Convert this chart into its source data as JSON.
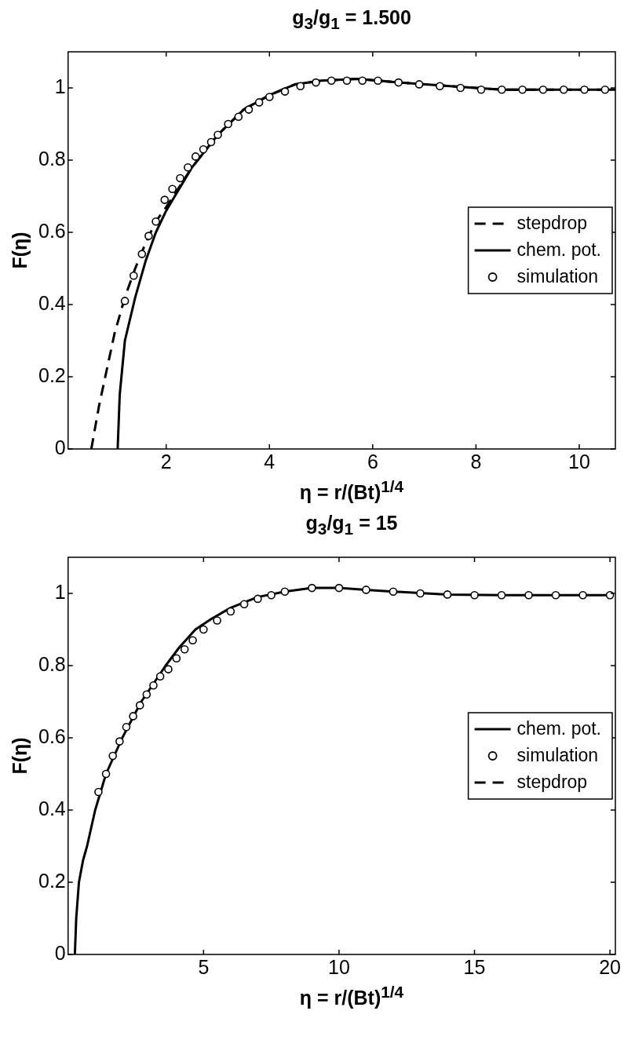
{
  "chart_data": [
    {
      "type": "line",
      "title": "g$_{3}$/g$_{1}$ = 1.500",
      "xlabel": "η = r/(Bt)$^{1/4}$",
      "ylabel": "F(η)",
      "xlim": [
        0.1,
        10.7
      ],
      "ylim": [
        0,
        1.1
      ],
      "xticks": [
        2,
        4,
        6,
        8,
        10
      ],
      "yticks": [
        0,
        0.2,
        0.4,
        0.6,
        0.8,
        1
      ],
      "grid": false,
      "legend": "right",
      "series": [
        {
          "name": "stepdrop",
          "type": "line",
          "color": "#000000",
          "line_style": "dashed",
          "marker": "none",
          "x": [
            0.55,
            0.7,
            0.85,
            1.0,
            1.2,
            1.4,
            1.6,
            1.8,
            2.0,
            2.5,
            3.0,
            3.5,
            4.0,
            4.5,
            5.0,
            5.7,
            6.5,
            7.5,
            8.5,
            9.5,
            10.7
          ],
          "values": [
            0,
            0.12,
            0.22,
            0.32,
            0.42,
            0.5,
            0.57,
            0.63,
            0.67,
            0.78,
            0.87,
            0.94,
            0.98,
            1.01,
            1.02,
            1.025,
            1.015,
            1.005,
            0.995,
            0.995,
            0.995
          ]
        },
        {
          "name": "chem. pot.",
          "type": "line",
          "color": "#000000",
          "line_style": "solid",
          "marker": "none",
          "x": [
            1.06,
            1.1,
            1.2,
            1.4,
            1.6,
            1.8,
            2.0,
            2.5,
            3.0,
            3.5,
            4.0,
            4.5,
            5.0,
            5.7,
            6.5,
            7.5,
            8.5,
            9.5,
            10.7
          ],
          "values": [
            0,
            0.15,
            0.3,
            0.42,
            0.52,
            0.6,
            0.66,
            0.78,
            0.87,
            0.94,
            0.98,
            1.01,
            1.02,
            1.025,
            1.015,
            1.005,
            0.995,
            0.995,
            0.995
          ]
        },
        {
          "name": "simulation",
          "type": "scatter",
          "color": "#000000",
          "marker": "circle",
          "x": [
            1.2,
            1.37,
            1.53,
            1.66,
            1.8,
            1.97,
            2.12,
            2.27,
            2.42,
            2.57,
            2.72,
            2.87,
            3.0,
            3.2,
            3.4,
            3.6,
            3.8,
            4.0,
            4.3,
            4.6,
            4.9,
            5.2,
            5.5,
            5.8,
            6.1,
            6.5,
            6.9,
            7.3,
            7.7,
            8.1,
            8.5,
            8.9,
            9.3,
            9.7,
            10.1,
            10.5
          ],
          "values": [
            0.41,
            0.48,
            0.54,
            0.59,
            0.63,
            0.69,
            0.72,
            0.75,
            0.78,
            0.81,
            0.83,
            0.85,
            0.87,
            0.9,
            0.92,
            0.94,
            0.96,
            0.975,
            0.99,
            1.005,
            1.015,
            1.02,
            1.02,
            1.02,
            1.02,
            1.015,
            1.01,
            1.005,
            1.0,
            0.995,
            0.995,
            0.995,
            0.995,
            0.995,
            0.995,
            0.995
          ]
        }
      ]
    },
    {
      "type": "line",
      "title": "g$_{3}$/g$_{1}$ = 15",
      "xlabel": "η = r/(Bt)$^{1/4}$",
      "ylabel": "F(η)",
      "xlim": [
        0,
        20.2
      ],
      "ylim": [
        0,
        1.1
      ],
      "xticks": [
        5,
        10,
        15,
        20
      ],
      "yticks": [
        0,
        0.2,
        0.4,
        0.6,
        0.8,
        1
      ],
      "grid": false,
      "legend": "right",
      "series": [
        {
          "name": "chem. pot.",
          "type": "line",
          "color": "#000000",
          "line_style": "solid",
          "marker": "none",
          "x": [
            0.25,
            0.3,
            0.4,
            0.55,
            0.7,
            1.0,
            1.4,
            2.0,
            2.7,
            3.6,
            4.1,
            4.7,
            5.3,
            6,
            7,
            8,
            9,
            10,
            11,
            12,
            14,
            16,
            18,
            20
          ],
          "values": [
            0,
            0.1,
            0.2,
            0.26,
            0.3,
            0.4,
            0.5,
            0.6,
            0.7,
            0.8,
            0.85,
            0.9,
            0.93,
            0.96,
            0.99,
            1.005,
            1.015,
            1.015,
            1.01,
            1.005,
            0.997,
            0.995,
            0.995,
            0.995
          ]
        },
        {
          "name": "simulation",
          "type": "scatter",
          "color": "#000000",
          "marker": "circle",
          "x": [
            1.12,
            1.4,
            1.65,
            1.9,
            2.15,
            2.4,
            2.65,
            2.9,
            3.15,
            3.4,
            3.7,
            4.0,
            4.3,
            4.6,
            5.0,
            5.5,
            6,
            6.5,
            7,
            7.5,
            8,
            9,
            10,
            11,
            12,
            13,
            14,
            15,
            16,
            17,
            18,
            19,
            20
          ],
          "values": [
            0.45,
            0.5,
            0.55,
            0.59,
            0.63,
            0.66,
            0.69,
            0.72,
            0.745,
            0.77,
            0.79,
            0.82,
            0.845,
            0.87,
            0.9,
            0.925,
            0.95,
            0.97,
            0.985,
            0.995,
            1.005,
            1.015,
            1.015,
            1.01,
            1.005,
            1.0,
            0.997,
            0.995,
            0.995,
            0.995,
            0.995,
            0.995,
            0.995
          ]
        },
        {
          "name": "stepdrop",
          "type": "line",
          "color": "#000000",
          "line_style": "dashed",
          "marker": "none"
        }
      ]
    }
  ]
}
